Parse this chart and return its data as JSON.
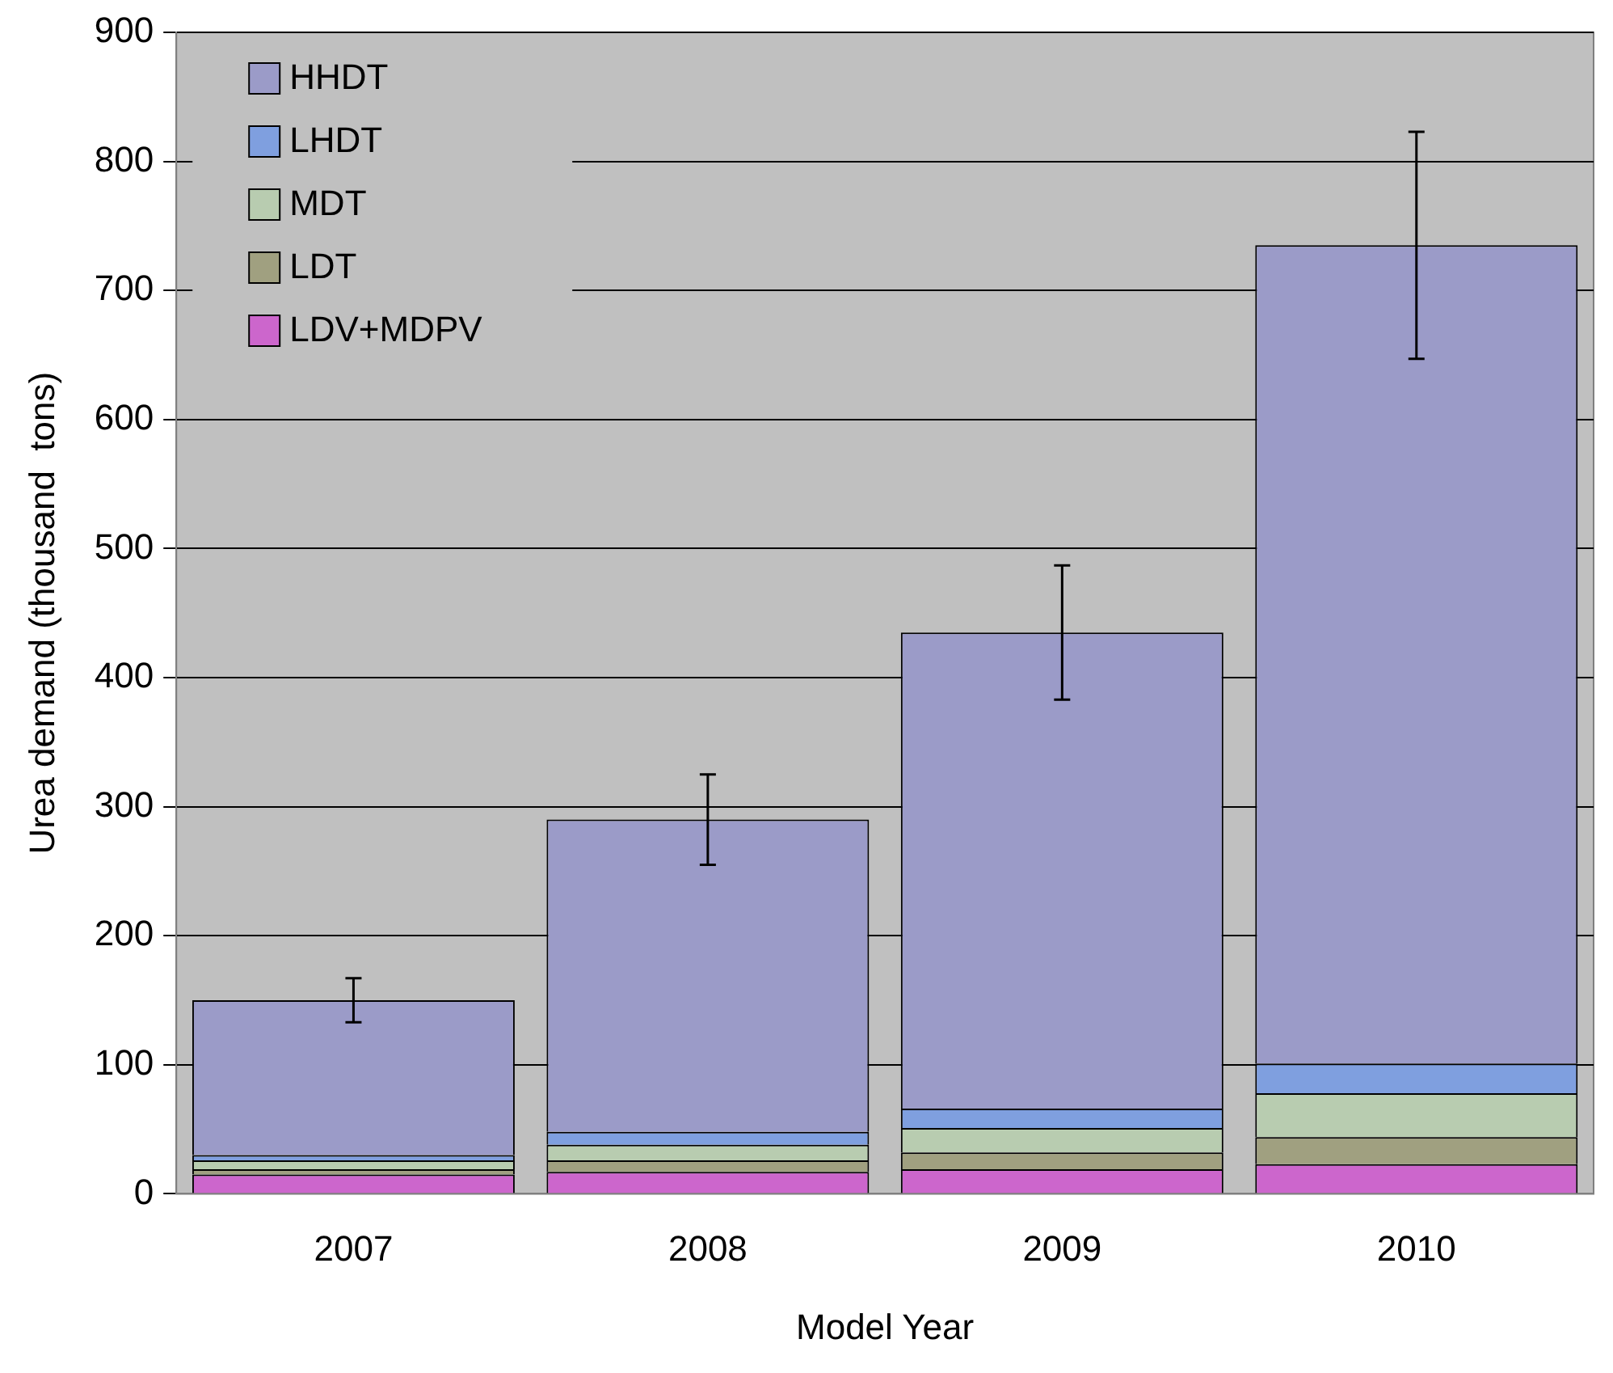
{
  "chart_data": {
    "type": "bar",
    "stacked": true,
    "xlabel": "Model Year",
    "ylabel": "Urea demand (thousand  tons)",
    "categories": [
      "2007",
      "2008",
      "2009",
      "2010"
    ],
    "series": [
      {
        "name": "LDV+MDPV",
        "color": "#cc66cc",
        "values": [
          15,
          17,
          19,
          23
        ]
      },
      {
        "name": "LDT",
        "color": "#a0a080",
        "values": [
          4,
          9,
          13,
          21
        ]
      },
      {
        "name": "MDT",
        "color": "#b8ccb0",
        "values": [
          7,
          12,
          19,
          34
        ]
      },
      {
        "name": "LHDT",
        "color": "#7f9fdf",
        "values": [
          4,
          10,
          15,
          23
        ]
      },
      {
        "name": "HHDT",
        "color": "#9b9bc8",
        "values": [
          120,
          242,
          369,
          634
        ],
        "errors": [
          17,
          35,
          52,
          88
        ]
      }
    ],
    "ylim": [
      0,
      900
    ],
    "yticks": [
      0,
      100,
      200,
      300,
      400,
      500,
      600,
      700,
      800,
      900
    ],
    "grid": "y",
    "legend": "top left"
  }
}
